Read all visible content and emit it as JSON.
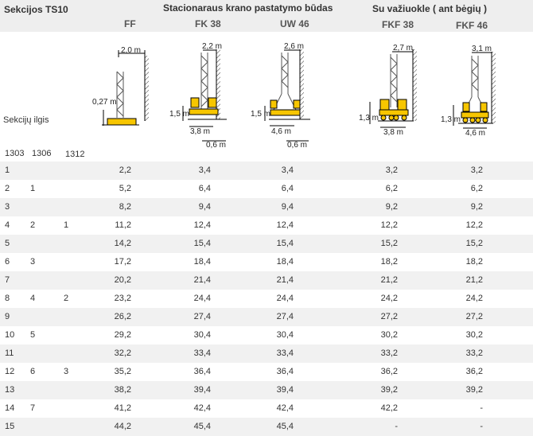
{
  "header": {
    "sections_title": "Sekcijos TS10",
    "stationary_title": "Stacionaraus krano pastatymo būdas",
    "mobile_title": "Su važiuokle ( ant bėgių )",
    "col_ff": "FF",
    "col_fk38": "FK 38",
    "col_uw46": "UW 46",
    "col_fkf38": "FKF 38",
    "col_fkf46": "FKF 46",
    "section_length_label": "Sekcijų ilgis",
    "len_1303": "1303",
    "len_1306": "1306",
    "len_1312": "1312"
  },
  "diagram_labels": {
    "ff_width": "2,0 m",
    "ff_height": "0,27 m",
    "fk38_width": "2,2 m",
    "fk38_height": "1,5 m",
    "fk38_base": "3,8 m",
    "fk38_gap": "0,6 m",
    "uw46_width": "2,6 m",
    "uw46_height": "1,5 m",
    "uw46_base": "4,6 m",
    "uw46_gap": "0,6 m",
    "fkf38_width": "2,7 m",
    "fkf38_height": "1,3 m",
    "fkf38_base": "3,8 m",
    "fkf46_width": "3,1 m",
    "fkf46_height": "1,3 m",
    "fkf46_base": "4,6 m"
  },
  "rows": [
    {
      "c1303": "1",
      "c1306": "",
      "c1312": "",
      "ff": "2,2",
      "fk38": "3,4",
      "uw46": "3,4",
      "fkf38": "3,2",
      "fkf46": "3,2"
    },
    {
      "c1303": "2",
      "c1306": "1",
      "c1312": "",
      "ff": "5,2",
      "fk38": "6,4",
      "uw46": "6,4",
      "fkf38": "6,2",
      "fkf46": "6,2"
    },
    {
      "c1303": "3",
      "c1306": "",
      "c1312": "",
      "ff": "8,2",
      "fk38": "9,4",
      "uw46": "9,4",
      "fkf38": "9,2",
      "fkf46": "9,2"
    },
    {
      "c1303": "4",
      "c1306": "2",
      "c1312": "1",
      "ff": "11,2",
      "fk38": "12,4",
      "uw46": "12,4",
      "fkf38": "12,2",
      "fkf46": "12,2"
    },
    {
      "c1303": "5",
      "c1306": "",
      "c1312": "",
      "ff": "14,2",
      "fk38": "15,4",
      "uw46": "15,4",
      "fkf38": "15,2",
      "fkf46": "15,2"
    },
    {
      "c1303": "6",
      "c1306": "3",
      "c1312": "",
      "ff": "17,2",
      "fk38": "18,4",
      "uw46": "18,4",
      "fkf38": "18,2",
      "fkf46": "18,2"
    },
    {
      "c1303": "7",
      "c1306": "",
      "c1312": "",
      "ff": "20,2",
      "fk38": "21,4",
      "uw46": "21,4",
      "fkf38": "21,2",
      "fkf46": "21,2"
    },
    {
      "c1303": "8",
      "c1306": "4",
      "c1312": "2",
      "ff": "23,2",
      "fk38": "24,4",
      "uw46": "24,4",
      "fkf38": "24,2",
      "fkf46": "24,2"
    },
    {
      "c1303": "9",
      "c1306": "",
      "c1312": "",
      "ff": "26,2",
      "fk38": "27,4",
      "uw46": "27,4",
      "fkf38": "27,2",
      "fkf46": "27,2"
    },
    {
      "c1303": "10",
      "c1306": "5",
      "c1312": "",
      "ff": "29,2",
      "fk38": "30,4",
      "uw46": "30,4",
      "fkf38": "30,2",
      "fkf46": "30,2"
    },
    {
      "c1303": "11",
      "c1306": "",
      "c1312": "",
      "ff": "32,2",
      "fk38": "33,4",
      "uw46": "33,4",
      "fkf38": "33,2",
      "fkf46": "33,2"
    },
    {
      "c1303": "12",
      "c1306": "6",
      "c1312": "3",
      "ff": "35,2",
      "fk38": "36,4",
      "uw46": "36,4",
      "fkf38": "36,2",
      "fkf46": "36,2"
    },
    {
      "c1303": "13",
      "c1306": "",
      "c1312": "",
      "ff": "38,2",
      "fk38": "39,4",
      "uw46": "39,4",
      "fkf38": "39,2",
      "fkf46": "39,2"
    },
    {
      "c1303": "14",
      "c1306": "7",
      "c1312": "",
      "ff": "41,2",
      "fk38": "42,4",
      "uw46": "42,4",
      "fkf38": "42,2",
      "fkf46": "-"
    },
    {
      "c1303": "15",
      "c1306": "",
      "c1312": "",
      "ff": "44,2",
      "fk38": "45,4",
      "uw46": "45,4",
      "fkf38": "-",
      "fkf46": "-"
    }
  ]
}
